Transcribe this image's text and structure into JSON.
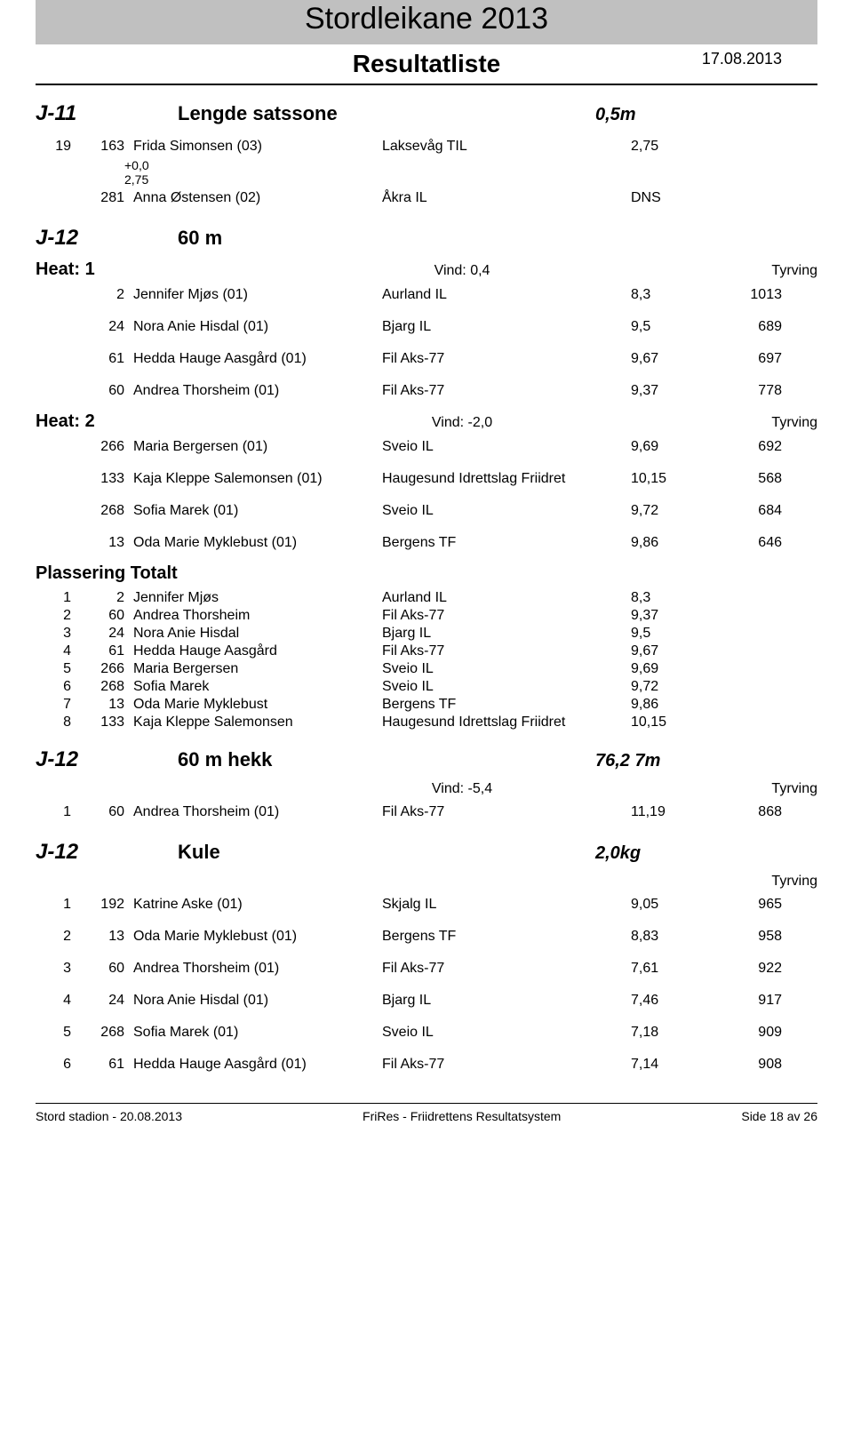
{
  "doc": {
    "title": "Stordleikane 2013",
    "subtitle": "Resultatliste",
    "date": "17.08.2013"
  },
  "footer": {
    "left": "Stord stadion - 20.08.2013",
    "center": "FriRes - Friidrettens Resultatsystem",
    "right": "Side 18 av 26"
  },
  "events": [
    {
      "class": "J-11",
      "name": "Lengde satssone",
      "spec": "0,5m",
      "heats": [],
      "loose_rows": [
        {
          "place": "19",
          "bib": "163",
          "name": "Frida Simonsen (03)",
          "club": "Laksevåg TIL",
          "mark": "2,75",
          "pts": "",
          "notes": [
            "+0,0",
            "2,75"
          ]
        },
        {
          "place": "",
          "bib": "281",
          "name": "Anna Østensen (02)",
          "club": "Åkra IL",
          "mark": "DNS",
          "pts": "",
          "notes": []
        }
      ]
    },
    {
      "class": "J-12",
      "name": "60 m",
      "spec": "",
      "heats": [
        {
          "label": "Heat: 1",
          "wind": "Vind: 0,4",
          "tyrving": "Tyrving",
          "rows": [
            {
              "place": "",
              "bib": "2",
              "name": "Jennifer Mjøs (01)",
              "club": "Aurland IL",
              "mark": "8,3",
              "pts": "1013"
            },
            {
              "place": "",
              "bib": "24",
              "name": "Nora Anie Hisdal (01)",
              "club": "Bjarg IL",
              "mark": "9,5",
              "pts": "689"
            },
            {
              "place": "",
              "bib": "61",
              "name": "Hedda Hauge Aasgård (01)",
              "club": "Fil Aks-77",
              "mark": "9,67",
              "pts": "697"
            },
            {
              "place": "",
              "bib": "60",
              "name": "Andrea Thorsheim (01)",
              "club": "Fil Aks-77",
              "mark": "9,37",
              "pts": "778"
            }
          ]
        },
        {
          "label": "Heat: 2",
          "wind": "Vind: -2,0",
          "tyrving": "Tyrving",
          "rows": [
            {
              "place": "",
              "bib": "266",
              "name": "Maria Bergersen (01)",
              "club": "Sveio IL",
              "mark": "9,69",
              "pts": "692"
            },
            {
              "place": "",
              "bib": "133",
              "name": "Kaja Kleppe Salemonsen (01)",
              "club": "Haugesund Idrettslag Friidret",
              "mark": "10,15",
              "pts": "568"
            },
            {
              "place": "",
              "bib": "268",
              "name": "Sofia Marek (01)",
              "club": "Sveio IL",
              "mark": "9,72",
              "pts": "684"
            },
            {
              "place": "",
              "bib": "13",
              "name": "Oda Marie Myklebust (01)",
              "club": "Bergens TF",
              "mark": "9,86",
              "pts": "646"
            }
          ]
        }
      ],
      "placing": {
        "label": "Plassering Totalt",
        "rows": [
          {
            "place": "1",
            "bib": "2",
            "name": "Jennifer Mjøs",
            "club": "Aurland IL",
            "mark": "8,3"
          },
          {
            "place": "2",
            "bib": "60",
            "name": "Andrea Thorsheim",
            "club": "Fil Aks-77",
            "mark": "9,37"
          },
          {
            "place": "3",
            "bib": "24",
            "name": "Nora Anie Hisdal",
            "club": "Bjarg IL",
            "mark": "9,5"
          },
          {
            "place": "4",
            "bib": "61",
            "name": "Hedda Hauge Aasgård",
            "club": "Fil Aks-77",
            "mark": "9,67"
          },
          {
            "place": "5",
            "bib": "266",
            "name": "Maria Bergersen",
            "club": "Sveio IL",
            "mark": "9,69"
          },
          {
            "place": "6",
            "bib": "268",
            "name": "Sofia Marek",
            "club": "Sveio IL",
            "mark": "9,72"
          },
          {
            "place": "7",
            "bib": "13",
            "name": "Oda Marie Myklebust",
            "club": "Bergens TF",
            "mark": "9,86"
          },
          {
            "place": "8",
            "bib": "133",
            "name": "Kaja Kleppe Salemonsen",
            "club": "Haugesund Idrettslag Friidret",
            "mark": "10,15"
          }
        ]
      }
    },
    {
      "class": "J-12",
      "name": "60 m hekk",
      "spec": "76,2 7m",
      "heats": [
        {
          "label": "",
          "wind": "Vind: -5,4",
          "tyrving": "Tyrving",
          "rows": [
            {
              "place": "1",
              "bib": "60",
              "name": "Andrea Thorsheim (01)",
              "club": "Fil Aks-77",
              "mark": "11,19",
              "pts": "868"
            }
          ]
        }
      ]
    },
    {
      "class": "J-12",
      "name": "Kule",
      "spec": "2,0kg",
      "heats": [
        {
          "label": "",
          "wind": "",
          "tyrving": "Tyrving",
          "rows": [
            {
              "place": "1",
              "bib": "192",
              "name": "Katrine Aske (01)",
              "club": "Skjalg IL",
              "mark": "9,05",
              "pts": "965"
            },
            {
              "place": "2",
              "bib": "13",
              "name": "Oda Marie Myklebust (01)",
              "club": "Bergens TF",
              "mark": "8,83",
              "pts": "958"
            },
            {
              "place": "3",
              "bib": "60",
              "name": "Andrea Thorsheim (01)",
              "club": "Fil Aks-77",
              "mark": "7,61",
              "pts": "922"
            },
            {
              "place": "4",
              "bib": "24",
              "name": "Nora Anie Hisdal (01)",
              "club": "Bjarg IL",
              "mark": "7,46",
              "pts": "917"
            },
            {
              "place": "5",
              "bib": "268",
              "name": "Sofia Marek (01)",
              "club": "Sveio IL",
              "mark": "7,18",
              "pts": "909"
            },
            {
              "place": "6",
              "bib": "61",
              "name": "Hedda Hauge Aasgård (01)",
              "club": "Fil Aks-77",
              "mark": "7,14",
              "pts": "908"
            }
          ]
        }
      ]
    }
  ]
}
